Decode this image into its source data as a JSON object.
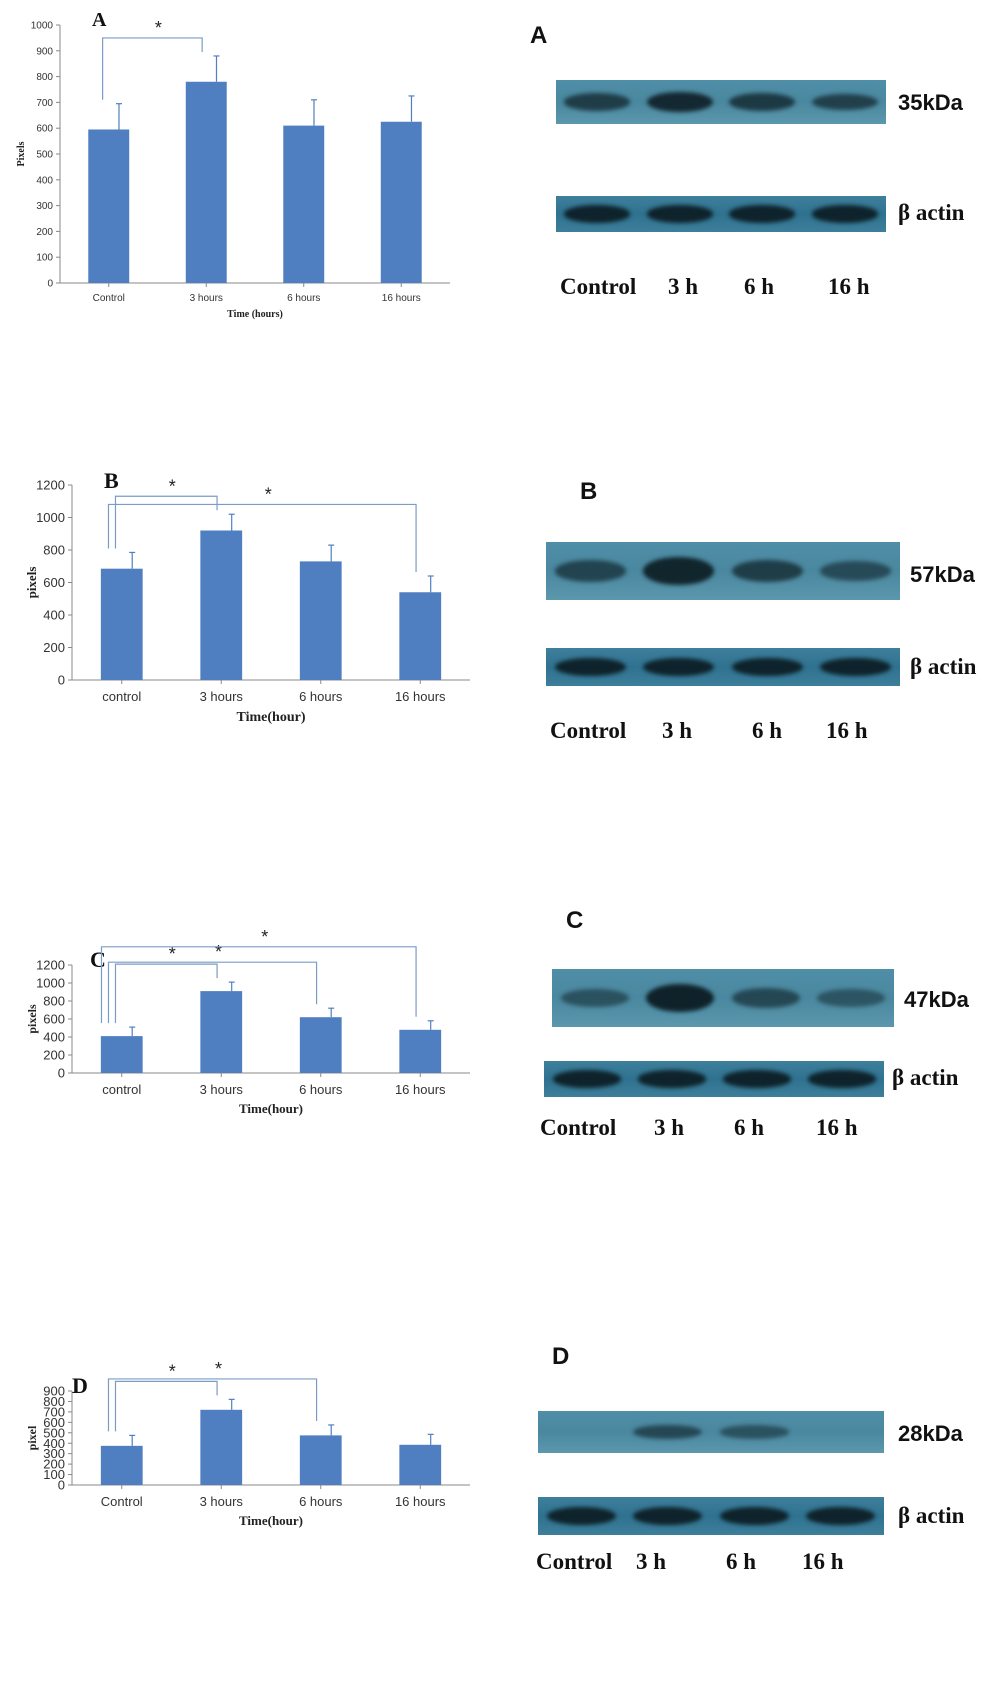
{
  "chart_data": [
    {
      "type": "bar",
      "panel_label": "A",
      "categories": [
        "Control",
        "3 hours",
        "6 hours",
        "16 hours"
      ],
      "values": [
        595,
        780,
        610,
        625
      ],
      "errors": [
        100,
        100,
        100,
        100
      ],
      "xlabel": "Time (hours)",
      "ylabel": "Pixels",
      "ylim": [
        0,
        1000
      ],
      "yticks": [
        0,
        100,
        200,
        300,
        400,
        500,
        600,
        700,
        800,
        900,
        1000
      ],
      "ytick_labels": [
        "0",
        "100",
        "200",
        "300",
        "400",
        "500",
        "600",
        "700",
        "800",
        "900",
        "1000"
      ],
      "significance": [
        {
          "from": 0,
          "to": 1,
          "label": "*"
        }
      ],
      "bar_color": "#4f7fc1",
      "blot": {
        "letter": "A",
        "band_label": "35kDa",
        "actin_label": "β actin",
        "lanes": [
          "Control",
          "3 h",
          "6 h",
          "16 h"
        ],
        "target_intensity": [
          0.55,
          0.85,
          0.6,
          0.5
        ]
      }
    },
    {
      "type": "bar",
      "panel_label": "B",
      "categories": [
        "control",
        "3 hours",
        "6 hours",
        "16 hours"
      ],
      "values": [
        685,
        920,
        730,
        540
      ],
      "errors": [
        100,
        100,
        100,
        100
      ],
      "xlabel": "Time(hour)",
      "ylabel": "pixels",
      "ylim": [
        0,
        1200
      ],
      "yticks": [
        0,
        200,
        400,
        600,
        800,
        1000,
        1200
      ],
      "ytick_labels": [
        "0",
        "200",
        "400",
        "600",
        "800",
        "1000",
        "1200"
      ],
      "significance": [
        {
          "from": 0,
          "to": 1,
          "label": "*"
        },
        {
          "from": 0,
          "to": 3,
          "label": "*"
        }
      ],
      "bar_color": "#4f7fc1",
      "blot": {
        "letter": "B",
        "band_label": "57kDa",
        "actin_label": "β actin",
        "lanes": [
          "Control",
          "3 h",
          "6 h",
          "16 h"
        ],
        "target_intensity": [
          0.45,
          0.9,
          0.55,
          0.35
        ]
      }
    },
    {
      "type": "bar",
      "panel_label": "C",
      "categories": [
        "control",
        "3 hours",
        "6 hours",
        "16 hours"
      ],
      "values": [
        410,
        910,
        620,
        480
      ],
      "errors": [
        100,
        100,
        100,
        100
      ],
      "xlabel": "Time(hour)",
      "ylabel": "pixels",
      "ylim": [
        0,
        1200
      ],
      "yticks": [
        0,
        200,
        400,
        600,
        800,
        1000,
        1200
      ],
      "ytick_labels": [
        "0",
        "200",
        "400",
        "600",
        "800",
        "1000",
        "1200"
      ],
      "significance": [
        {
          "from": 0,
          "to": 1,
          "label": "*"
        },
        {
          "from": 0,
          "to": 2,
          "label": "*"
        },
        {
          "from": 0,
          "to": 3,
          "label": "*"
        }
      ],
      "bar_color": "#4f7fc1",
      "blot": {
        "letter": "C",
        "band_label": "47kDa",
        "actin_label": "β actin",
        "lanes": [
          "Control",
          "3 h",
          "6 h",
          "16 h"
        ],
        "target_intensity": [
          0.25,
          0.95,
          0.4,
          0.2
        ]
      }
    },
    {
      "type": "bar",
      "panel_label": "D",
      "categories": [
        "Control",
        "3 hours",
        "6 hours",
        "16 hours"
      ],
      "values": [
        375,
        720,
        475,
        385
      ],
      "errors": [
        100,
        100,
        100,
        100
      ],
      "xlabel": "Time(hour)",
      "ylabel": "pixel",
      "ylim": [
        0,
        900
      ],
      "yticks": [
        0,
        100,
        200,
        300,
        400,
        500,
        600,
        700,
        800,
        900
      ],
      "ytick_labels": [
        "0",
        "100",
        "200",
        "300",
        "400",
        "500",
        "600",
        "700",
        "800",
        "900"
      ],
      "significance": [
        {
          "from": 0,
          "to": 1,
          "label": "*"
        },
        {
          "from": 0,
          "to": 2,
          "label": "*"
        }
      ],
      "bar_color": "#4f7fc1",
      "blot": {
        "letter": "D",
        "band_label": "28kDa",
        "actin_label": "β actin",
        "lanes": [
          "Control",
          "3 h",
          "6 h",
          "16 h"
        ],
        "target_intensity": [
          0.0,
          0.4,
          0.25,
          0.0
        ]
      }
    }
  ]
}
